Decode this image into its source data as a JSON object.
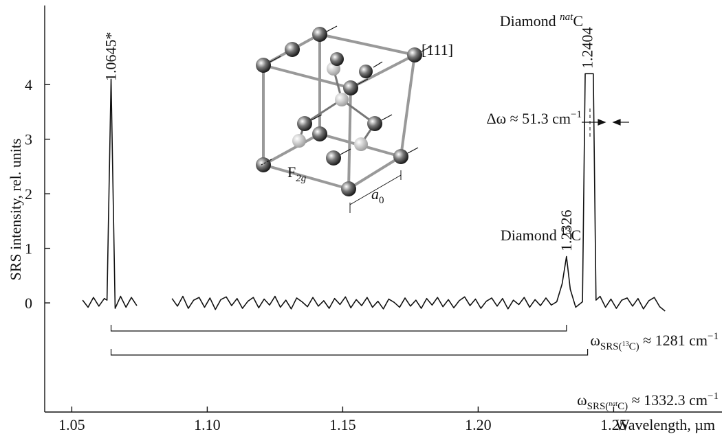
{
  "chart_data": {
    "type": "line",
    "y_label": "SRS intensity, rel. units",
    "x_label": "Wavelength, µm",
    "xlim": [
      1.04,
      1.29
    ],
    "ylim": [
      -2,
      5.45
    ],
    "xticks": [
      1.05,
      {
        "value": 1.1,
        "label": "1.10"
      },
      1.15,
      {
        "value": 1.2,
        "label": "1.20"
      },
      1.25
    ],
    "yticks": [
      0,
      1,
      2,
      3,
      4
    ],
    "x": [
      1.054,
      1.056,
      1.058,
      1.06,
      1.062,
      1.063,
      1.0645,
      1.066,
      1.068,
      1.07,
      1.072,
      1.074,
      1.08,
      1.087,
      1.089,
      1.091,
      1.093,
      1.095,
      1.097,
      1.099,
      1.101,
      1.103,
      1.105,
      1.107,
      1.109,
      1.111,
      1.113,
      1.115,
      1.117,
      1.119,
      1.121,
      1.123,
      1.125,
      1.127,
      1.129,
      1.131,
      1.133,
      1.135,
      1.137,
      1.139,
      1.141,
      1.143,
      1.145,
      1.147,
      1.149,
      1.151,
      1.153,
      1.155,
      1.157,
      1.159,
      1.161,
      1.163,
      1.165,
      1.167,
      1.169,
      1.171,
      1.173,
      1.175,
      1.177,
      1.179,
      1.181,
      1.183,
      1.185,
      1.187,
      1.189,
      1.191,
      1.193,
      1.195,
      1.197,
      1.199,
      1.201,
      1.203,
      1.205,
      1.207,
      1.209,
      1.211,
      1.213,
      1.215,
      1.217,
      1.219,
      1.221,
      1.223,
      1.225,
      1.227,
      1.229,
      1.231,
      1.2326,
      1.234,
      1.236,
      1.2385,
      1.2395,
      1.2425,
      1.2435,
      1.245,
      1.247,
      1.249,
      1.251,
      1.253,
      1.255,
      1.257,
      1.259,
      1.261,
      1.263,
      1.265,
      1.267,
      1.269
    ],
    "series": [
      {
        "color": "#111111",
        "values": [
          0.05,
          -0.08,
          0.1,
          -0.06,
          0.08,
          0.05,
          4.1,
          -0.1,
          0.12,
          -0.08,
          0.1,
          -0.05,
          null,
          0.08,
          -0.06,
          0.12,
          -0.1,
          0.05,
          0.1,
          -0.08,
          0.09,
          -0.12,
          0.06,
          0.11,
          -0.05,
          0.08,
          -0.1,
          0.03,
          0.1,
          -0.09,
          0.07,
          -0.04,
          0.12,
          -0.08,
          0.05,
          -0.11,
          0.09,
          0.02,
          -0.07,
          0.1,
          -0.06,
          0.04,
          -0.1,
          0.08,
          -0.03,
          0.11,
          -0.09,
          0.06,
          -0.05,
          0.1,
          -0.08,
          0.03,
          -0.11,
          0.07,
          0.01,
          -0.08,
          0.09,
          -0.06,
          0.05,
          -0.1,
          0.08,
          -0.04,
          0.1,
          -0.07,
          0.06,
          -0.09,
          0.04,
          0.11,
          -0.05,
          0.07,
          -0.1,
          0.03,
          0.09,
          -0.06,
          0.08,
          -0.11,
          0.05,
          -0.03,
          0.1,
          -0.08,
          0.06,
          -0.05,
          0.09,
          -0.04,
          0.02,
          0.35,
          0.85,
          0.25,
          -0.08,
          0.02,
          4.2,
          4.2,
          0.05,
          0.12,
          -0.08,
          0.07,
          -0.1,
          0.05,
          0.09,
          -0.06,
          0.08,
          -0.11,
          0.04,
          0.1,
          -0.07,
          -0.15
        ]
      }
    ],
    "peaks": [
      {
        "x": 1.0645,
        "label": "1.0645*"
      },
      {
        "x": 1.2404,
        "label": "1.2404"
      },
      {
        "x": 1.2326,
        "label": "1.2326"
      }
    ],
    "annotations": {
      "diamond_nat": {
        "text": "Diamond ",
        "sup": "nat",
        "tail": "C"
      },
      "diamond_13": {
        "text": "Diamond ",
        "sup": "13",
        "tail": "C"
      },
      "shift": {
        "text": "Δω ≈ 51.3 cm",
        "sup": "−1"
      },
      "srs_13": {
        "text": "ω",
        "sub": "SRS(",
        "subsup": "13",
        "subtail": "C)",
        "tail": " ≈ 1281 cm",
        "sup": "−1"
      },
      "srs_nat": {
        "text": "ω",
        "sub": "SRS(",
        "subsup": "nat",
        "subtail": "C)",
        "tail": " ≈ 1332.3 cm",
        "sup": "−1"
      }
    },
    "crystal": {
      "direction": "[111]",
      "mode": "F",
      "mode_sub": "2g",
      "lattice": "a",
      "lattice_sub": "0"
    }
  }
}
